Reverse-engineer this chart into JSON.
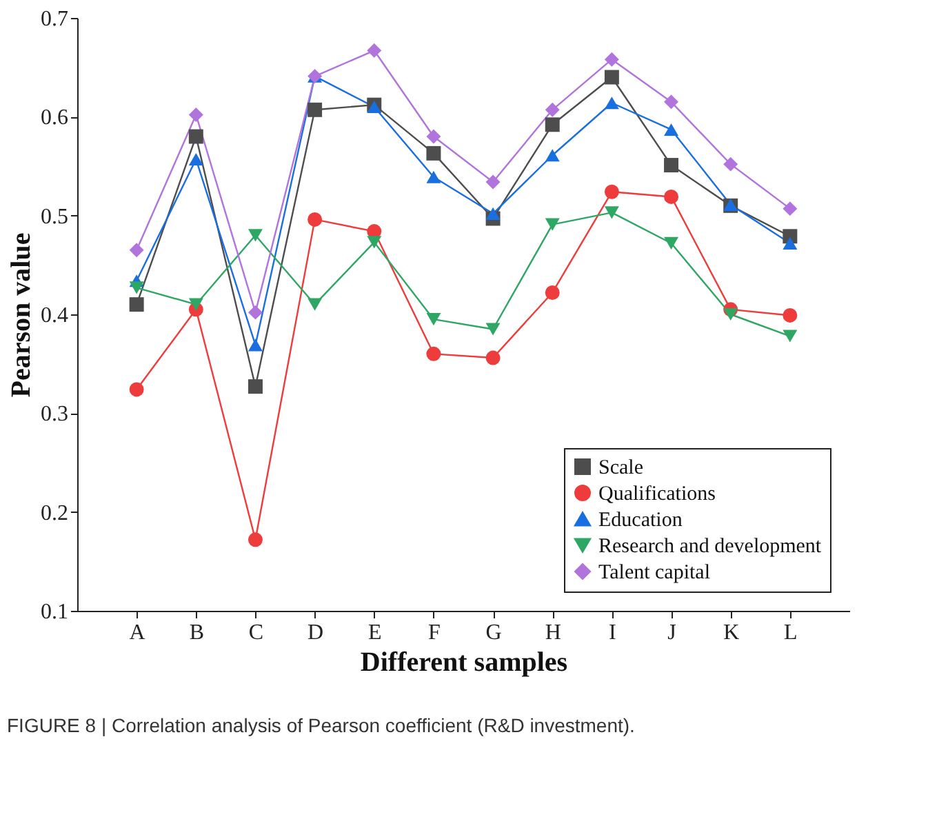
{
  "chart_data": {
    "type": "line",
    "xlabel": "Different samples",
    "ylabel": "Pearson value",
    "categories": [
      "A",
      "B",
      "C",
      "D",
      "E",
      "F",
      "G",
      "H",
      "I",
      "J",
      "K",
      "L"
    ],
    "ylim": [
      0.1,
      0.7
    ],
    "yticks": [
      0.1,
      0.2,
      0.3,
      0.4,
      0.5,
      0.6,
      0.7
    ],
    "grid": false,
    "legend": "bottom right",
    "annotations": [
      "FIGURE 8 | Correlation analysis of Pearson coefficient (R&D investment)."
    ],
    "series": [
      {
        "name": "Scale",
        "color": "#4d4d4d",
        "marker": "square",
        "values": [
          0.41,
          0.58,
          0.327,
          0.607,
          0.612,
          0.563,
          0.497,
          0.592,
          0.64,
          0.551,
          0.51,
          0.479
        ]
      },
      {
        "name": "Qualifications",
        "color": "#ee3b3b",
        "marker": "circle",
        "values": [
          0.324,
          0.405,
          0.172,
          0.496,
          0.484,
          0.36,
          0.356,
          0.422,
          0.524,
          0.519,
          0.405,
          0.399
        ]
      },
      {
        "name": "Education",
        "color": "#1a6fe0",
        "marker": "triangle",
        "values": [
          0.434,
          0.557,
          0.369,
          0.641,
          0.61,
          0.539,
          0.502,
          0.561,
          0.614,
          0.587,
          0.511,
          0.472
        ]
      },
      {
        "name": "Research and development",
        "color": "#2ea664",
        "marker": "triangle-down",
        "values": [
          0.427,
          0.41,
          0.48,
          0.41,
          0.473,
          0.395,
          0.385,
          0.491,
          0.503,
          0.472,
          0.4,
          0.378
        ]
      },
      {
        "name": "Talent capital",
        "color": "#b074dc",
        "marker": "diamond",
        "values": [
          0.465,
          0.602,
          0.402,
          0.641,
          0.667,
          0.58,
          0.534,
          0.607,
          0.658,
          0.615,
          0.552,
          0.507
        ]
      }
    ]
  }
}
